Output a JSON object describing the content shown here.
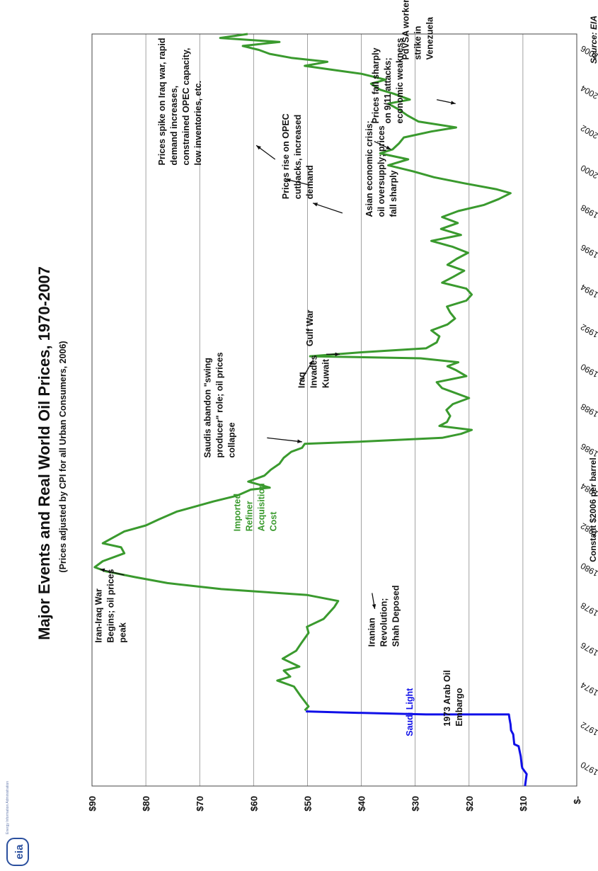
{
  "logo": {
    "text": "eia",
    "org": "Energy Information Administration"
  },
  "chart_data": {
    "type": "line",
    "title": "Major Events and Real World Oil Prices, 1970-2007",
    "subtitle": "(Prices adjusted by CPI for all Urban Consumers, 2006)",
    "ylabel": "Constant $2006 per barrel",
    "source": "Source: EIA",
    "xlim": [
      1969.0,
      2006.8
    ],
    "ylim": [
      0,
      90
    ],
    "grid": true,
    "x_ticks": [
      "1970",
      "1972",
      "1974",
      "1976",
      "1978",
      "1980",
      "1982",
      "1984",
      "1986",
      "1988",
      "1990",
      "1992",
      "1994",
      "1996",
      "1998",
      "2000",
      "2002",
      "2004",
      "2006"
    ],
    "y_ticks": [
      "$-",
      "$10",
      "$20",
      "$30",
      "$40",
      "$50",
      "$60",
      "$70",
      "$80",
      "$90"
    ],
    "colors": {
      "saudi": "#1010e8",
      "refiner": "#3a9a2e",
      "text": "#111111",
      "grid": "#8a8a8a"
    },
    "series": [
      {
        "name": "Saudi Light",
        "color": "#1010e8",
        "points": [
          [
            1969.0,
            9.6
          ],
          [
            1969.6,
            9.3
          ],
          [
            1969.9,
            10.1
          ],
          [
            1970.0,
            10.2
          ],
          [
            1970.5,
            10.4
          ],
          [
            1971.0,
            10.8
          ],
          [
            1971.1,
            11.6
          ],
          [
            1971.6,
            11.8
          ],
          [
            1971.8,
            12.2
          ],
          [
            1972.1,
            12.3
          ],
          [
            1972.4,
            12.5
          ],
          [
            1972.6,
            12.6
          ],
          [
            1972.6,
            28.0
          ],
          [
            1972.7,
            44.0
          ],
          [
            1972.75,
            50.3
          ]
        ]
      },
      {
        "name": "Imported Refiner Acquisition Cost",
        "color": "#3a9a2e",
        "points": [
          [
            1972.8,
            50.5
          ],
          [
            1973.0,
            49.8
          ],
          [
            1973.5,
            51.2
          ],
          [
            1974.0,
            52.5
          ],
          [
            1974.3,
            55.6
          ],
          [
            1974.5,
            53.2
          ],
          [
            1974.8,
            54.4
          ],
          [
            1975.0,
            51.5
          ],
          [
            1975.4,
            54.6
          ],
          [
            1975.8,
            52.1
          ],
          [
            1976.2,
            51.1
          ],
          [
            1976.7,
            49.8
          ],
          [
            1977.0,
            50.1
          ],
          [
            1977.4,
            47.0
          ],
          [
            1978.0,
            45.0
          ],
          [
            1978.3,
            44.3
          ],
          [
            1978.6,
            50.0
          ],
          [
            1978.9,
            66.0
          ],
          [
            1979.2,
            76.0
          ],
          [
            1979.5,
            82.0
          ],
          [
            1979.8,
            87.5
          ],
          [
            1980.0,
            89.5
          ],
          [
            1980.3,
            88.0
          ],
          [
            1980.7,
            84.0
          ],
          [
            1981.0,
            84.6
          ],
          [
            1981.2,
            88.0
          ],
          [
            1981.5,
            86.0
          ],
          [
            1981.8,
            84.0
          ],
          [
            1982.1,
            80.0
          ],
          [
            1982.4,
            77.6
          ],
          [
            1982.8,
            74.2
          ],
          [
            1983.0,
            71.5
          ],
          [
            1983.3,
            67.5
          ],
          [
            1983.6,
            63.0
          ],
          [
            1983.9,
            60.5
          ],
          [
            1984.0,
            57.0
          ],
          [
            1984.3,
            61.0
          ],
          [
            1984.6,
            58.0
          ],
          [
            1984.9,
            56.8
          ],
          [
            1985.2,
            55.2
          ],
          [
            1985.5,
            54.4
          ],
          [
            1985.8,
            53.0
          ],
          [
            1986.0,
            51.0
          ],
          [
            1986.2,
            50.5
          ],
          [
            1986.3,
            41.0
          ],
          [
            1986.5,
            25.0
          ],
          [
            1986.7,
            21.5
          ],
          [
            1986.9,
            19.5
          ],
          [
            1987.1,
            25.5
          ],
          [
            1987.3,
            24.1
          ],
          [
            1987.6,
            23.5
          ],
          [
            1987.9,
            24.2
          ],
          [
            1988.2,
            23.0
          ],
          [
            1988.5,
            20.0
          ],
          [
            1988.8,
            23.0
          ],
          [
            1989.0,
            25.0
          ],
          [
            1989.3,
            26.0
          ],
          [
            1989.6,
            20.5
          ],
          [
            1989.9,
            22.4
          ],
          [
            1990.1,
            24.0
          ],
          [
            1990.3,
            22.0
          ],
          [
            1990.5,
            29.0
          ],
          [
            1990.6,
            49.5
          ],
          [
            1990.8,
            40.0
          ],
          [
            1991.0,
            28.0
          ],
          [
            1991.3,
            26.0
          ],
          [
            1991.6,
            25.5
          ],
          [
            1991.9,
            27.0
          ],
          [
            1992.2,
            24.0
          ],
          [
            1992.5,
            22.6
          ],
          [
            1992.8,
            23.5
          ],
          [
            1993.1,
            24.1
          ],
          [
            1993.4,
            20.5
          ],
          [
            1993.7,
            19.5
          ],
          [
            1994.0,
            20.5
          ],
          [
            1994.3,
            25.0
          ],
          [
            1994.6,
            22.9
          ],
          [
            1994.9,
            20.9
          ],
          [
            1995.2,
            24.0
          ],
          [
            1995.5,
            22.3
          ],
          [
            1995.8,
            20.2
          ],
          [
            1996.1,
            23.0
          ],
          [
            1996.4,
            27.0
          ],
          [
            1996.7,
            21.5
          ],
          [
            1997.0,
            25.2
          ],
          [
            1997.3,
            22.1
          ],
          [
            1997.6,
            25.0
          ],
          [
            1997.9,
            22.0
          ],
          [
            1998.2,
            17.3
          ],
          [
            1998.5,
            14.5
          ],
          [
            1998.8,
            12.3
          ],
          [
            1999.0,
            15.0
          ],
          [
            1999.3,
            21.0
          ],
          [
            1999.6,
            26.5
          ],
          [
            1999.9,
            30.4
          ],
          [
            2000.2,
            35.0
          ],
          [
            2000.5,
            31.3
          ],
          [
            2000.8,
            36.5
          ],
          [
            2001.0,
            34.2
          ],
          [
            2001.3,
            33.0
          ],
          [
            2001.6,
            32.1
          ],
          [
            2001.9,
            27.0
          ],
          [
            2002.1,
            22.4
          ],
          [
            2002.4,
            29.4
          ],
          [
            2002.7,
            31.4
          ],
          [
            2003.0,
            33.0
          ],
          [
            2003.3,
            35.0
          ],
          [
            2003.5,
            31.0
          ],
          [
            2003.8,
            34.0
          ],
          [
            2004.0,
            36.5
          ],
          [
            2004.3,
            38.2
          ],
          [
            2004.5,
            35.5
          ],
          [
            2004.8,
            40.0
          ],
          [
            2005.0,
            45.3
          ],
          [
            2005.2,
            50.5
          ],
          [
            2005.4,
            46.3
          ],
          [
            2005.6,
            53.0
          ],
          [
            2005.8,
            57.0
          ],
          [
            2006.0,
            59.0
          ],
          [
            2006.2,
            62.0
          ],
          [
            2006.4,
            55.2
          ],
          [
            2006.6,
            66.2
          ],
          [
            2006.8,
            61.1
          ]
        ]
      }
    ],
    "annotations": [
      {
        "id": "embargo",
        "lines": [
          "1973 Arab Oil",
          "Embargo"
        ]
      },
      {
        "id": "iran-iraq",
        "lines": [
          "Iran-Iraq War",
          "Begins; oil prices",
          "peak"
        ]
      },
      {
        "id": "iranian-rev",
        "lines": [
          "Iranian",
          "Revolution;",
          "Shah Deposed"
        ]
      },
      {
        "id": "refiner-label",
        "lines": [
          "Imported",
          "Refiner",
          "Acquisition",
          "Cost"
        ]
      },
      {
        "id": "saudi-label",
        "lines": [
          "Saudi Light"
        ]
      },
      {
        "id": "saudis",
        "lines": [
          "Saudis abandon \"swing",
          "producer\" role; oil prices",
          "collapse"
        ]
      },
      {
        "id": "iraq-kuwait",
        "lines": [
          "Iraq",
          "Invades",
          "Kuwait"
        ]
      },
      {
        "id": "gulf-war",
        "lines": [
          "Gulf War"
        ]
      },
      {
        "id": "asian",
        "lines": [
          "Asian economic crisis;",
          "oil oversupply; prices",
          "fall sharply"
        ]
      },
      {
        "id": "opec-cut",
        "lines": [
          "Prices rise on OPEC",
          "cutbacks, increased",
          "demand"
        ]
      },
      {
        "id": "sept11",
        "lines": [
          "Prices fall sharply",
          "on 9/11 attacks;",
          "economic weakness"
        ]
      },
      {
        "id": "pdvsa",
        "lines": [
          "PdVSA workers",
          "strike in",
          "Venezuela"
        ]
      },
      {
        "id": "iraq-war",
        "lines": [
          "Prices spike on Iraq war, rapid",
          "demand increases,",
          "constrained OPEC capacity,",
          "low inventories, etc."
        ]
      }
    ]
  }
}
